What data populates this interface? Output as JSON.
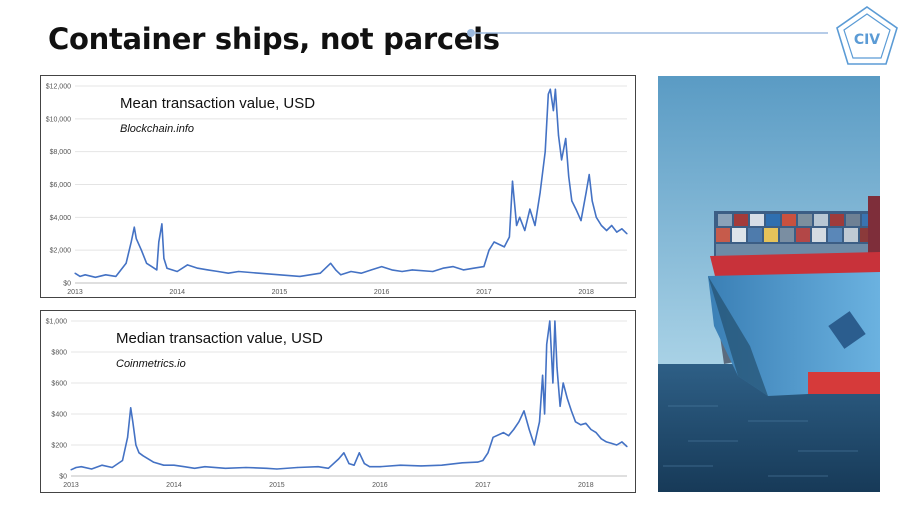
{
  "slide": {
    "title": "Container ships, not parcels",
    "logo_text": "CIV",
    "accent_color": "#9dbbe0",
    "logo_color": "#5b9bd5"
  },
  "image": {
    "alt": "container-ship-photo"
  },
  "chart_data": [
    {
      "type": "line",
      "title": "Mean transaction value, USD",
      "subtitle": "Blockchain.info",
      "color": "#4472c4",
      "xticks": [
        "2013",
        "2014",
        "2015",
        "2016",
        "2017",
        "2018"
      ],
      "yticks": [
        "$0",
        "$2,000",
        "$4,000",
        "$6,000",
        "$8,000",
        "$10,000",
        "$12,000"
      ],
      "ylim": [
        0,
        12000
      ],
      "xlim": [
        2013.0,
        2018.4
      ],
      "grid": true,
      "x": [
        2013.0,
        2013.05,
        2013.1,
        2013.2,
        2013.3,
        2013.4,
        2013.5,
        2013.55,
        2013.58,
        2013.6,
        2013.65,
        2013.7,
        2013.75,
        2013.8,
        2013.82,
        2013.85,
        2013.87,
        2013.9,
        2013.95,
        2014.0,
        2014.1,
        2014.2,
        2014.3,
        2014.4,
        2014.5,
        2014.6,
        2014.8,
        2015.0,
        2015.2,
        2015.4,
        2015.5,
        2015.55,
        2015.6,
        2015.7,
        2015.8,
        2015.9,
        2016.0,
        2016.1,
        2016.2,
        2016.3,
        2016.5,
        2016.6,
        2016.7,
        2016.8,
        2016.9,
        2017.0,
        2017.05,
        2017.1,
        2017.2,
        2017.25,
        2017.28,
        2017.32,
        2017.35,
        2017.4,
        2017.45,
        2017.5,
        2017.55,
        2017.6,
        2017.63,
        2017.65,
        2017.68,
        2017.7,
        2017.73,
        2017.76,
        2017.8,
        2017.83,
        2017.86,
        2017.9,
        2017.95,
        2018.0,
        2018.03,
        2018.06,
        2018.1,
        2018.15,
        2018.2,
        2018.25,
        2018.3,
        2018.35,
        2018.4
      ],
      "values": [
        600,
        400,
        500,
        350,
        500,
        400,
        1200,
        2500,
        3400,
        2700,
        2000,
        1200,
        1000,
        800,
        2500,
        3600,
        1500,
        900,
        800,
        700,
        1100,
        900,
        800,
        700,
        600,
        700,
        600,
        500,
        400,
        600,
        1200,
        800,
        500,
        700,
        600,
        800,
        1000,
        800,
        700,
        800,
        700,
        900,
        1000,
        800,
        900,
        1000,
        2000,
        2500,
        2200,
        2800,
        6200,
        3500,
        4000,
        3200,
        4500,
        3500,
        5500,
        8000,
        11500,
        11800,
        10500,
        11800,
        9000,
        7500,
        8800,
        6500,
        5000,
        4500,
        3800,
        5500,
        6600,
        5000,
        4000,
        3500,
        3200,
        3500,
        3100,
        3300,
        3000
      ]
    },
    {
      "type": "line",
      "title": "Median transaction value, USD",
      "subtitle": "Coinmetrics.io",
      "color": "#4472c4",
      "xticks": [
        "2013",
        "2014",
        "2015",
        "2016",
        "2017",
        "2018"
      ],
      "yticks": [
        "$0",
        "$200",
        "$400",
        "$600",
        "$800",
        "$1,000"
      ],
      "ylim": [
        0,
        1000
      ],
      "xlim": [
        2013.0,
        2018.4
      ],
      "grid": true,
      "x": [
        2013.0,
        2013.05,
        2013.1,
        2013.2,
        2013.3,
        2013.4,
        2013.5,
        2013.55,
        2013.58,
        2013.6,
        2013.63,
        2013.66,
        2013.7,
        2013.8,
        2013.9,
        2014.0,
        2014.1,
        2014.2,
        2014.3,
        2014.5,
        2014.7,
        2014.9,
        2015.0,
        2015.2,
        2015.4,
        2015.5,
        2015.6,
        2015.65,
        2015.7,
        2015.75,
        2015.8,
        2015.85,
        2015.9,
        2016.0,
        2016.2,
        2016.4,
        2016.6,
        2016.8,
        2016.95,
        2017.0,
        2017.05,
        2017.1,
        2017.2,
        2017.25,
        2017.3,
        2017.35,
        2017.4,
        2017.45,
        2017.5,
        2017.55,
        2017.58,
        2017.6,
        2017.62,
        2017.65,
        2017.68,
        2017.7,
        2017.72,
        2017.75,
        2017.78,
        2017.82,
        2017.86,
        2017.9,
        2017.95,
        2018.0,
        2018.05,
        2018.1,
        2018.15,
        2018.2,
        2018.25,
        2018.3,
        2018.35,
        2018.4
      ],
      "values": [
        40,
        55,
        60,
        45,
        70,
        55,
        100,
        250,
        440,
        350,
        200,
        150,
        130,
        90,
        70,
        70,
        60,
        50,
        60,
        50,
        55,
        50,
        45,
        55,
        60,
        50,
        110,
        150,
        80,
        70,
        150,
        80,
        60,
        60,
        70,
        65,
        70,
        85,
        90,
        100,
        150,
        250,
        280,
        260,
        300,
        350,
        420,
        300,
        200,
        350,
        650,
        400,
        850,
        1000,
        600,
        1000,
        700,
        450,
        600,
        500,
        420,
        350,
        330,
        340,
        300,
        280,
        240,
        220,
        210,
        200,
        220,
        190
      ]
    }
  ]
}
